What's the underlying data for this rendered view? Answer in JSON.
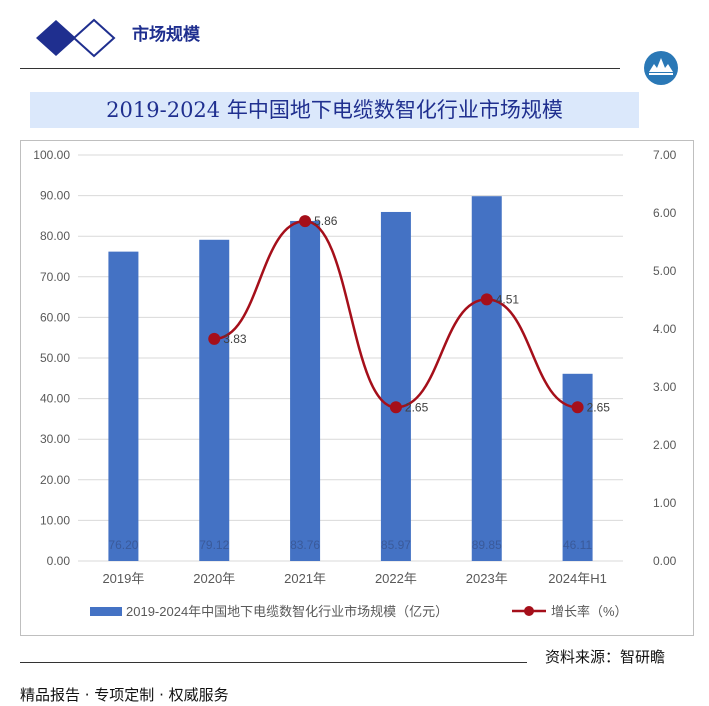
{
  "header": {
    "title": "市场规模"
  },
  "chart_title": "2019-2024 年中国地下电缆数智化行业市场规模",
  "source": "资料来源：智研瞻",
  "footer": "精品报告 ·  专项定制 · 权威服务",
  "colors": {
    "bar": "#4472c4",
    "line": "#a50f1a",
    "title_band": "#dbe8fb",
    "logo_dark": "#1f2f8f",
    "logo_circle": "#2a78b6"
  },
  "chart_data": {
    "type": "bar",
    "categories": [
      "2019年",
      "2020年",
      "2021年",
      "2022年",
      "2023年",
      "2024年H1"
    ],
    "series": [
      {
        "name": "2019-2024年中国地下电缆数智化行业市场规模（亿元）",
        "type": "bar",
        "axis": "left",
        "values": [
          76.2,
          79.12,
          83.76,
          85.97,
          89.85,
          46.11
        ],
        "labels": [
          "76.20",
          "79.12",
          "83.76",
          "85.97",
          "89.85",
          "46.11"
        ]
      },
      {
        "name": "增长率（%）",
        "type": "line",
        "axis": "right",
        "values": [
          null,
          3.83,
          5.86,
          2.65,
          4.51,
          2.65
        ],
        "labels": [
          "",
          "3.83",
          "5.86",
          "2.65",
          "4.51",
          "2.65"
        ]
      }
    ],
    "y_left": {
      "min": 0,
      "max": 100,
      "step": 10,
      "ticks": [
        "0.00",
        "10.00",
        "20.00",
        "30.00",
        "40.00",
        "50.00",
        "60.00",
        "70.00",
        "80.00",
        "90.00",
        "100.00"
      ]
    },
    "y_right": {
      "min": 0,
      "max": 7,
      "step": 1,
      "ticks": [
        "0.00",
        "1.00",
        "2.00",
        "3.00",
        "4.00",
        "5.00",
        "6.00",
        "7.00"
      ]
    },
    "grid": true,
    "legend": "bottom"
  }
}
